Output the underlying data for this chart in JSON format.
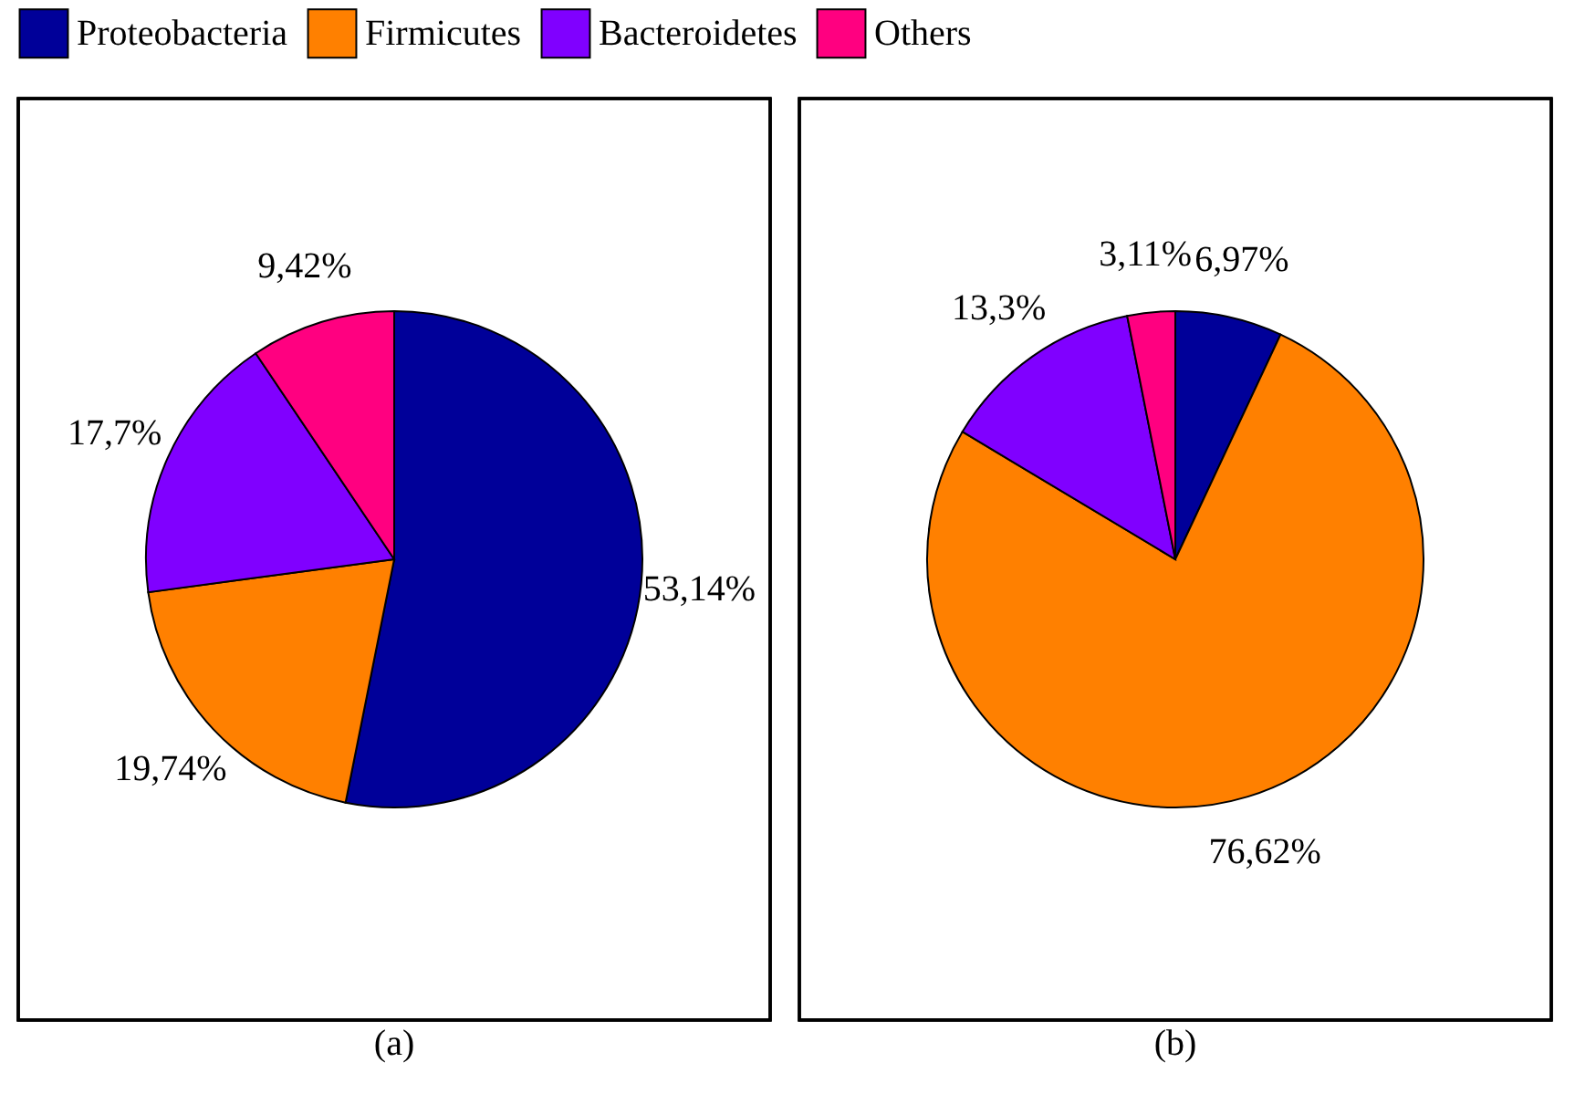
{
  "chart_data": [
    {
      "type": "pie",
      "title": "(a)",
      "categories": [
        "Proteobacteria",
        "Firmicutes",
        "Bacteroidetes",
        "Others"
      ],
      "values": [
        53.14,
        19.74,
        17.7,
        9.42
      ],
      "value_labels": [
        "53,14%",
        "19,74%",
        "17,7%",
        "9,42%"
      ],
      "colors": [
        "#000099",
        "#ff8000",
        "#8000ff",
        "#ff0080"
      ],
      "legend": "top"
    },
    {
      "type": "pie",
      "title": "(b)",
      "categories": [
        null,
        null,
        null,
        null
      ],
      "values": [
        6.97,
        76.62,
        13.3,
        3.11
      ],
      "value_labels": [
        "6,97%",
        "76,62%",
        "13,3%",
        "3,11%"
      ],
      "colors": [
        "#000099",
        "#ff8000",
        "#8000ff",
        "#ff0080"
      ]
    }
  ]
}
